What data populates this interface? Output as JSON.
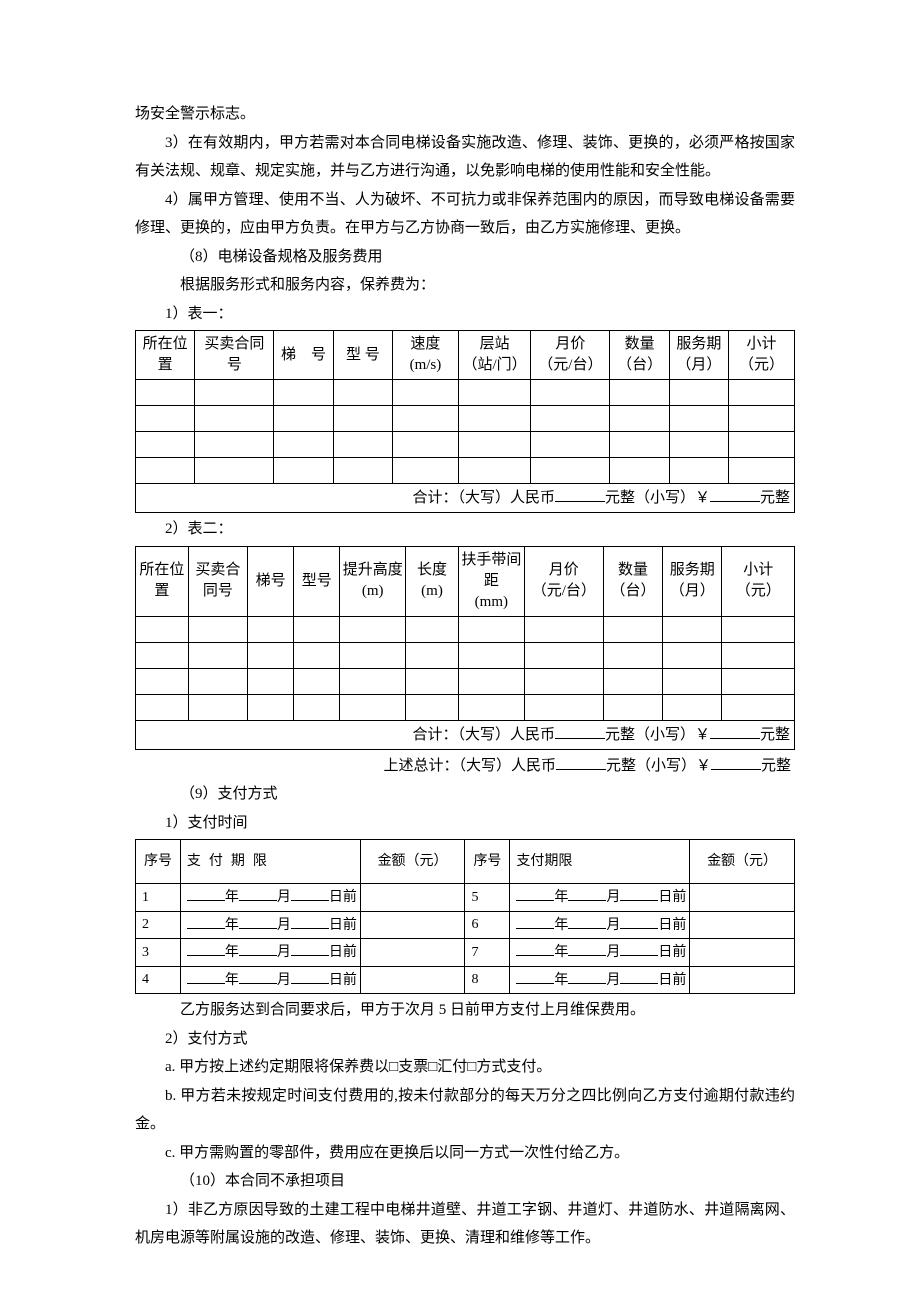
{
  "paragraphs": {
    "p1": "场安全警示标志。",
    "p2": "3）在有效期内，甲方若需对本合同电梯设备实施改造、修理、装饰、更换的，必须严格按国家有关法规、规章、规定实施，并与乙方进行沟通，以免影响电梯的使用性能和安全性能。",
    "p3": "4）属甲方管理、使用不当、人为破坏、不可抗力或非保养范围内的原因，而导致电梯设备需要修理、更换的，应由甲方负责。在甲方与乙方协商一致后，由乙方实施修理、更换。",
    "section8": "（8）电梯设备规格及服务费用",
    "section8_sub": "根据服务形式和服务内容，保养费为：",
    "t1_label": "1）表一：",
    "t2_label": "2）表二：",
    "section9": "（9）支付方式",
    "s9_1": "1）支付时间",
    "s9_after": "乙方服务达到合同要求后，甲方于次月 5 日前甲方支付上月维保费用。",
    "s9_2": "2）支付方式",
    "s9_2a": "a. 甲方按上述约定期限将保养费以□支票□汇付□方式支付。",
    "s9_2b": "b. 甲方若未按规定时间支付费用的,按未付款部分的每天万分之四比例向乙方支付逾期付款违约金。",
    "s9_2c": "c. 甲方需购置的零部件，费用应在更换后以同一方式一次性付给乙方。",
    "section10": "（10）本合同不承担项目",
    "s10_1": "1）非乙方原因导致的土建工程中电梯井道壁、井道工字钢、井道灯、井道防水、井道隔离网、机房电源等附属设施的改造、修理、装饰、更换、清理和维修等工作。"
  },
  "table1": {
    "headers": [
      "所在位置",
      "买卖合同号",
      "梯　号",
      "型  号",
      "速度\n(m/s)",
      "层站\n（站/门）",
      "月价\n（元/台）",
      "数量\n（台）",
      "服务期\n（月）",
      "小计\n（元）"
    ],
    "col_widths": [
      "9%",
      "12%",
      "9%",
      "9%",
      "10%",
      "11%",
      "12%",
      "9%",
      "9%",
      "10%"
    ],
    "footer_prefix": "合计：（大写）人民币",
    "footer_mid": "元整（小写）￥",
    "footer_suffix": "元整"
  },
  "table2": {
    "headers": [
      "所在位置",
      "买卖合同号",
      "梯号",
      "型号",
      "提升高度\n(m)",
      "长度\n(m)",
      "扶手带间距\n(mm)",
      "月价\n（元/台）",
      "数量\n（台）",
      "服务期\n（月）",
      "小计\n（元）"
    ],
    "col_widths": [
      "8%",
      "9%",
      "7%",
      "7%",
      "10%",
      "8%",
      "10%",
      "12%",
      "9%",
      "9%",
      "11%"
    ],
    "footer_prefix": "合计：（大写）人民币",
    "footer_mid": "元整（小写）￥",
    "footer_suffix": "元整"
  },
  "grand_total": {
    "prefix": "上述总计：（大写）人民币",
    "mid": "元整（小写）￥",
    "suffix": "元整"
  },
  "table3": {
    "headers": [
      "序号",
      "支付期限",
      "金额（元）",
      "序号",
      "支付期限",
      "金额（元）"
    ],
    "col_widths": [
      "6%",
      "24%",
      "14%",
      "6%",
      "24%",
      "14%"
    ],
    "rows": [
      {
        "n1": "1",
        "n2": "5"
      },
      {
        "n1": "2",
        "n2": "6"
      },
      {
        "n1": "3",
        "n2": "7"
      },
      {
        "n1": "4",
        "n2": "8"
      }
    ],
    "date_y": "年",
    "date_m": "月",
    "date_d": "日前"
  }
}
